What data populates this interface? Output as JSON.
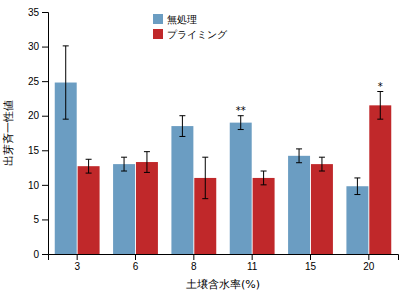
{
  "chart_data": {
    "type": "bar",
    "categories": [
      "3",
      "6",
      "8",
      "11",
      "15",
      "20"
    ],
    "xlabel": "土壌含水率(%)",
    "ylabel": "出芽斉一性値",
    "series": [
      {
        "name": "無処理",
        "color": "#6B9DC2",
        "values": [
          24.8,
          13.0,
          18.5,
          19.0,
          14.2,
          9.8
        ],
        "errors": [
          5.3,
          1.0,
          1.5,
          1.0,
          1.0,
          1.2
        ]
      },
      {
        "name": "プライミング",
        "color": "#C0282A",
        "values": [
          12.7,
          13.3,
          11.0,
          11.0,
          13.0,
          21.5
        ],
        "errors": [
          1.0,
          1.5,
          3.0,
          1.0,
          1.0,
          2.0
        ]
      }
    ],
    "annotations": [
      {
        "text": "**",
        "series": 0,
        "index": 3
      },
      {
        "text": "*",
        "series": 1,
        "index": 5
      }
    ],
    "ylim": [
      0,
      35
    ],
    "yticks": [
      0,
      5,
      10,
      15,
      20,
      25,
      30,
      35
    ],
    "legend": "upper left"
  }
}
